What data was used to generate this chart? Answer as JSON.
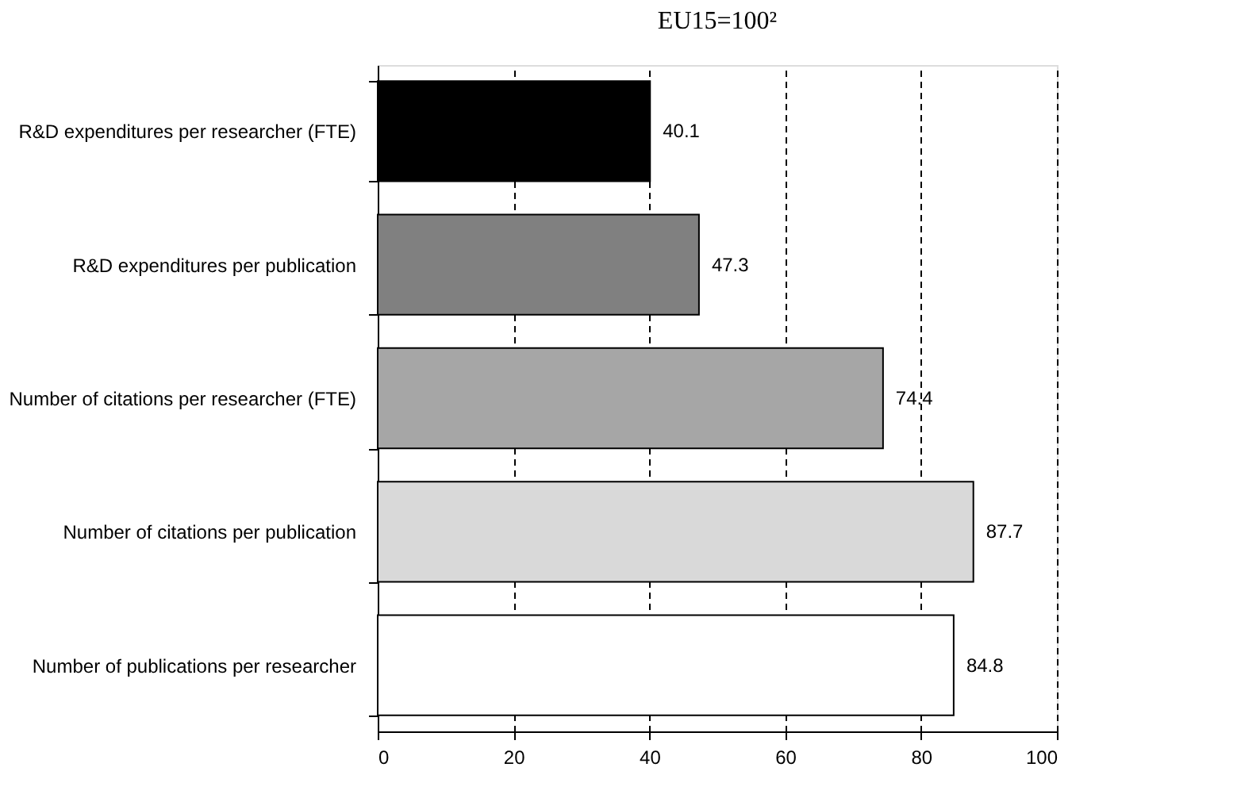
{
  "chart_data": {
    "type": "bar",
    "orientation": "horizontal",
    "title": "EU15=100²",
    "categories": [
      "R&D expenditures per researcher (FTE)",
      "R&D expenditures per publication",
      "Number of citations per researcher (FTE)",
      "Number of citations per publication",
      "Number of publications per researcher"
    ],
    "values": [
      40.1,
      47.3,
      74.4,
      87.7,
      84.8
    ],
    "colors": [
      "#000000",
      "#808080",
      "#a6a6a6",
      "#d9d9d9",
      "#ffffff"
    ],
    "xlim": [
      0,
      100
    ],
    "xticks": [
      0,
      20,
      40,
      60,
      80,
      100
    ],
    "grid": "x",
    "data_labels": true
  }
}
